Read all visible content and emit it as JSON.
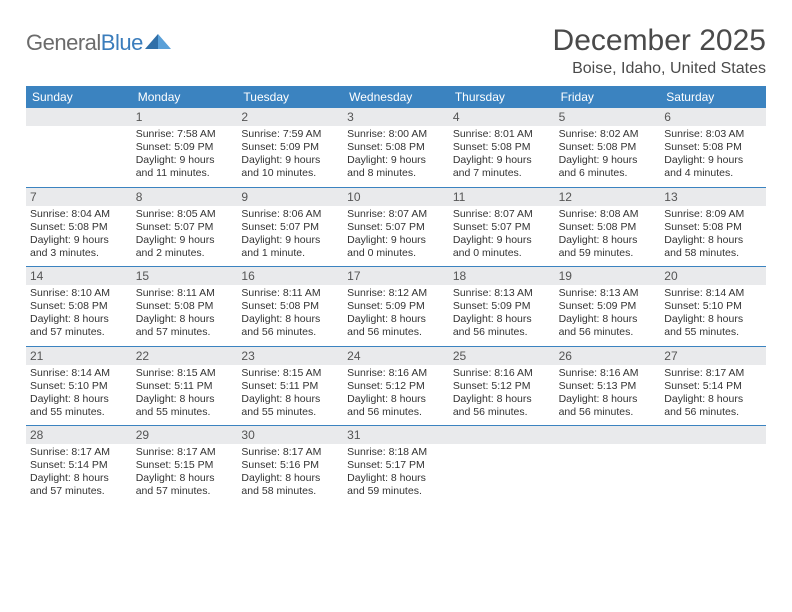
{
  "logo": {
    "text1": "General",
    "text2": "Blue"
  },
  "title": "December 2025",
  "location": "Boise, Idaho, United States",
  "colors": {
    "header_bg": "#3b83c0",
    "header_text": "#ffffff",
    "daybar_bg": "#e9eaec",
    "daybar_text": "#555555",
    "border": "#3b83c0",
    "text": "#333333",
    "logo_gray": "#6b6b6b",
    "logo_blue": "#3b7dbc"
  },
  "weekdays": [
    "Sunday",
    "Monday",
    "Tuesday",
    "Wednesday",
    "Thursday",
    "Friday",
    "Saturday"
  ],
  "grid": [
    [
      {
        "day": "",
        "sunrise": "",
        "sunset": "",
        "daylight": ""
      },
      {
        "day": "1",
        "sunrise": "Sunrise: 7:58 AM",
        "sunset": "Sunset: 5:09 PM",
        "daylight": "Daylight: 9 hours and 11 minutes."
      },
      {
        "day": "2",
        "sunrise": "Sunrise: 7:59 AM",
        "sunset": "Sunset: 5:09 PM",
        "daylight": "Daylight: 9 hours and 10 minutes."
      },
      {
        "day": "3",
        "sunrise": "Sunrise: 8:00 AM",
        "sunset": "Sunset: 5:08 PM",
        "daylight": "Daylight: 9 hours and 8 minutes."
      },
      {
        "day": "4",
        "sunrise": "Sunrise: 8:01 AM",
        "sunset": "Sunset: 5:08 PM",
        "daylight": "Daylight: 9 hours and 7 minutes."
      },
      {
        "day": "5",
        "sunrise": "Sunrise: 8:02 AM",
        "sunset": "Sunset: 5:08 PM",
        "daylight": "Daylight: 9 hours and 6 minutes."
      },
      {
        "day": "6",
        "sunrise": "Sunrise: 8:03 AM",
        "sunset": "Sunset: 5:08 PM",
        "daylight": "Daylight: 9 hours and 4 minutes."
      }
    ],
    [
      {
        "day": "7",
        "sunrise": "Sunrise: 8:04 AM",
        "sunset": "Sunset: 5:08 PM",
        "daylight": "Daylight: 9 hours and 3 minutes."
      },
      {
        "day": "8",
        "sunrise": "Sunrise: 8:05 AM",
        "sunset": "Sunset: 5:07 PM",
        "daylight": "Daylight: 9 hours and 2 minutes."
      },
      {
        "day": "9",
        "sunrise": "Sunrise: 8:06 AM",
        "sunset": "Sunset: 5:07 PM",
        "daylight": "Daylight: 9 hours and 1 minute."
      },
      {
        "day": "10",
        "sunrise": "Sunrise: 8:07 AM",
        "sunset": "Sunset: 5:07 PM",
        "daylight": "Daylight: 9 hours and 0 minutes."
      },
      {
        "day": "11",
        "sunrise": "Sunrise: 8:07 AM",
        "sunset": "Sunset: 5:07 PM",
        "daylight": "Daylight: 9 hours and 0 minutes."
      },
      {
        "day": "12",
        "sunrise": "Sunrise: 8:08 AM",
        "sunset": "Sunset: 5:08 PM",
        "daylight": "Daylight: 8 hours and 59 minutes."
      },
      {
        "day": "13",
        "sunrise": "Sunrise: 8:09 AM",
        "sunset": "Sunset: 5:08 PM",
        "daylight": "Daylight: 8 hours and 58 minutes."
      }
    ],
    [
      {
        "day": "14",
        "sunrise": "Sunrise: 8:10 AM",
        "sunset": "Sunset: 5:08 PM",
        "daylight": "Daylight: 8 hours and 57 minutes."
      },
      {
        "day": "15",
        "sunrise": "Sunrise: 8:11 AM",
        "sunset": "Sunset: 5:08 PM",
        "daylight": "Daylight: 8 hours and 57 minutes."
      },
      {
        "day": "16",
        "sunrise": "Sunrise: 8:11 AM",
        "sunset": "Sunset: 5:08 PM",
        "daylight": "Daylight: 8 hours and 56 minutes."
      },
      {
        "day": "17",
        "sunrise": "Sunrise: 8:12 AM",
        "sunset": "Sunset: 5:09 PM",
        "daylight": "Daylight: 8 hours and 56 minutes."
      },
      {
        "day": "18",
        "sunrise": "Sunrise: 8:13 AM",
        "sunset": "Sunset: 5:09 PM",
        "daylight": "Daylight: 8 hours and 56 minutes."
      },
      {
        "day": "19",
        "sunrise": "Sunrise: 8:13 AM",
        "sunset": "Sunset: 5:09 PM",
        "daylight": "Daylight: 8 hours and 56 minutes."
      },
      {
        "day": "20",
        "sunrise": "Sunrise: 8:14 AM",
        "sunset": "Sunset: 5:10 PM",
        "daylight": "Daylight: 8 hours and 55 minutes."
      }
    ],
    [
      {
        "day": "21",
        "sunrise": "Sunrise: 8:14 AM",
        "sunset": "Sunset: 5:10 PM",
        "daylight": "Daylight: 8 hours and 55 minutes."
      },
      {
        "day": "22",
        "sunrise": "Sunrise: 8:15 AM",
        "sunset": "Sunset: 5:11 PM",
        "daylight": "Daylight: 8 hours and 55 minutes."
      },
      {
        "day": "23",
        "sunrise": "Sunrise: 8:15 AM",
        "sunset": "Sunset: 5:11 PM",
        "daylight": "Daylight: 8 hours and 55 minutes."
      },
      {
        "day": "24",
        "sunrise": "Sunrise: 8:16 AM",
        "sunset": "Sunset: 5:12 PM",
        "daylight": "Daylight: 8 hours and 56 minutes."
      },
      {
        "day": "25",
        "sunrise": "Sunrise: 8:16 AM",
        "sunset": "Sunset: 5:12 PM",
        "daylight": "Daylight: 8 hours and 56 minutes."
      },
      {
        "day": "26",
        "sunrise": "Sunrise: 8:16 AM",
        "sunset": "Sunset: 5:13 PM",
        "daylight": "Daylight: 8 hours and 56 minutes."
      },
      {
        "day": "27",
        "sunrise": "Sunrise: 8:17 AM",
        "sunset": "Sunset: 5:14 PM",
        "daylight": "Daylight: 8 hours and 56 minutes."
      }
    ],
    [
      {
        "day": "28",
        "sunrise": "Sunrise: 8:17 AM",
        "sunset": "Sunset: 5:14 PM",
        "daylight": "Daylight: 8 hours and 57 minutes."
      },
      {
        "day": "29",
        "sunrise": "Sunrise: 8:17 AM",
        "sunset": "Sunset: 5:15 PM",
        "daylight": "Daylight: 8 hours and 57 minutes."
      },
      {
        "day": "30",
        "sunrise": "Sunrise: 8:17 AM",
        "sunset": "Sunset: 5:16 PM",
        "daylight": "Daylight: 8 hours and 58 minutes."
      },
      {
        "day": "31",
        "sunrise": "Sunrise: 8:18 AM",
        "sunset": "Sunset: 5:17 PM",
        "daylight": "Daylight: 8 hours and 59 minutes."
      },
      {
        "day": "",
        "sunrise": "",
        "sunset": "",
        "daylight": ""
      },
      {
        "day": "",
        "sunrise": "",
        "sunset": "",
        "daylight": ""
      },
      {
        "day": "",
        "sunrise": "",
        "sunset": "",
        "daylight": ""
      }
    ]
  ]
}
